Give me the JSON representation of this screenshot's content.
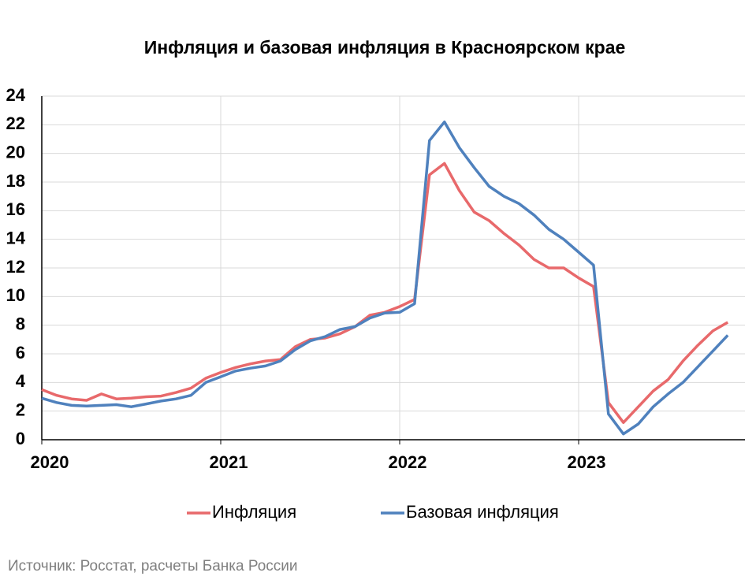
{
  "chart_data": {
    "type": "line",
    "title": "Инфляция и базовая инфляция в Красноярском крае",
    "source": "Источник: Росстат, расчеты Банка России",
    "categories": [
      "2020",
      null,
      null,
      null,
      null,
      null,
      null,
      null,
      null,
      null,
      null,
      null,
      "2021",
      null,
      null,
      null,
      null,
      null,
      null,
      null,
      null,
      null,
      null,
      null,
      "2022",
      null,
      null,
      null,
      null,
      null,
      null,
      null,
      null,
      null,
      null,
      null,
      "2023",
      null,
      null,
      null,
      null,
      null,
      null,
      null,
      null,
      null,
      null
    ],
    "series": [
      {
        "name": "Инфляция",
        "color": "#e8696b",
        "values": [
          3.5,
          3.1,
          2.85,
          2.75,
          3.2,
          2.85,
          2.9,
          3.0,
          3.05,
          3.3,
          3.6,
          4.3,
          4.7,
          5.05,
          5.3,
          5.5,
          5.6,
          6.5,
          7.0,
          7.1,
          7.4,
          7.9,
          8.7,
          8.9,
          9.3,
          9.8,
          18.5,
          19.3,
          17.4,
          15.9,
          15.3,
          14.4,
          13.6,
          12.6,
          12.0,
          12.0,
          11.3,
          10.7,
          2.6,
          1.2,
          2.3,
          3.4,
          4.2,
          5.5,
          6.6,
          7.6,
          8.2
        ]
      },
      {
        "name": "Базовая инфляция",
        "color": "#4f81bd",
        "values": [
          2.9,
          2.6,
          2.4,
          2.35,
          2.4,
          2.45,
          2.3,
          2.5,
          2.7,
          2.85,
          3.1,
          4.0,
          4.4,
          4.8,
          5.0,
          5.15,
          5.5,
          6.3,
          6.9,
          7.2,
          7.7,
          7.9,
          8.5,
          8.85,
          8.9,
          9.5,
          20.9,
          22.2,
          20.4,
          19.0,
          17.7,
          17.0,
          16.5,
          15.7,
          14.7,
          14.0,
          13.1,
          12.2,
          1.8,
          0.4,
          1.1,
          2.3,
          3.2,
          4.0,
          5.1,
          6.2,
          7.3
        ]
      }
    ],
    "ylim": [
      0,
      24
    ],
    "yticks": [
      0,
      2,
      4,
      6,
      8,
      10,
      12,
      14,
      16,
      18,
      20,
      22,
      24
    ],
    "grid": true,
    "legend": "bottom"
  }
}
